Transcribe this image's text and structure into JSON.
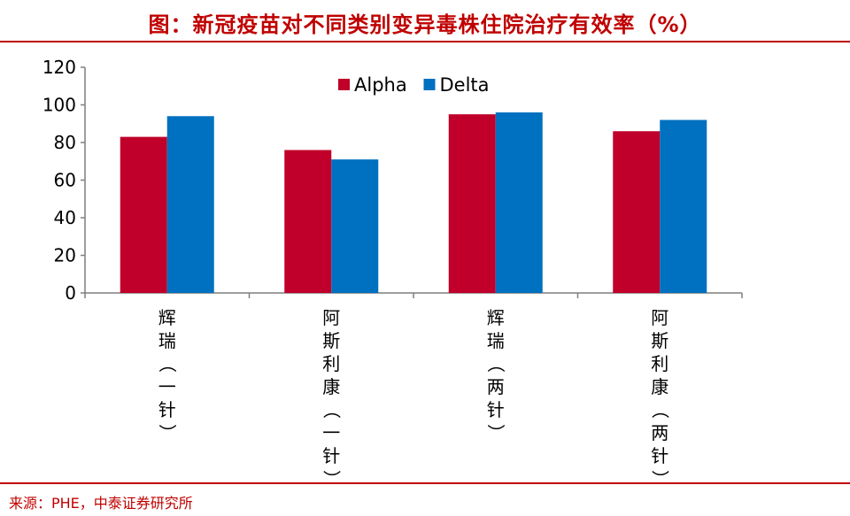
{
  "title": "图：新冠疫苗对不同类别变异毒株住院治疗有效率（%）",
  "source": "来源：PHE，中泰证券研究所",
  "chart_data": {
    "type": "bar",
    "title": "图：新冠疫苗对不同类别变异毒株住院治疗有效率（%）",
    "categories": [
      "辉瑞（一针）",
      "阿斯利康（一针）",
      "辉瑞（两针）",
      "阿斯利康（两针）"
    ],
    "series": [
      {
        "name": "Alpha",
        "values": [
          83,
          76,
          95,
          86
        ],
        "color": "#c0002a"
      },
      {
        "name": "Delta",
        "values": [
          94,
          71,
          96,
          92
        ],
        "color": "#0070c0"
      }
    ],
    "yticks": [
      "0",
      "20",
      "40",
      "60",
      "80",
      "100",
      "120"
    ],
    "ylim": [
      0,
      120
    ],
    "legend_position": "top-center",
    "grid": false
  }
}
